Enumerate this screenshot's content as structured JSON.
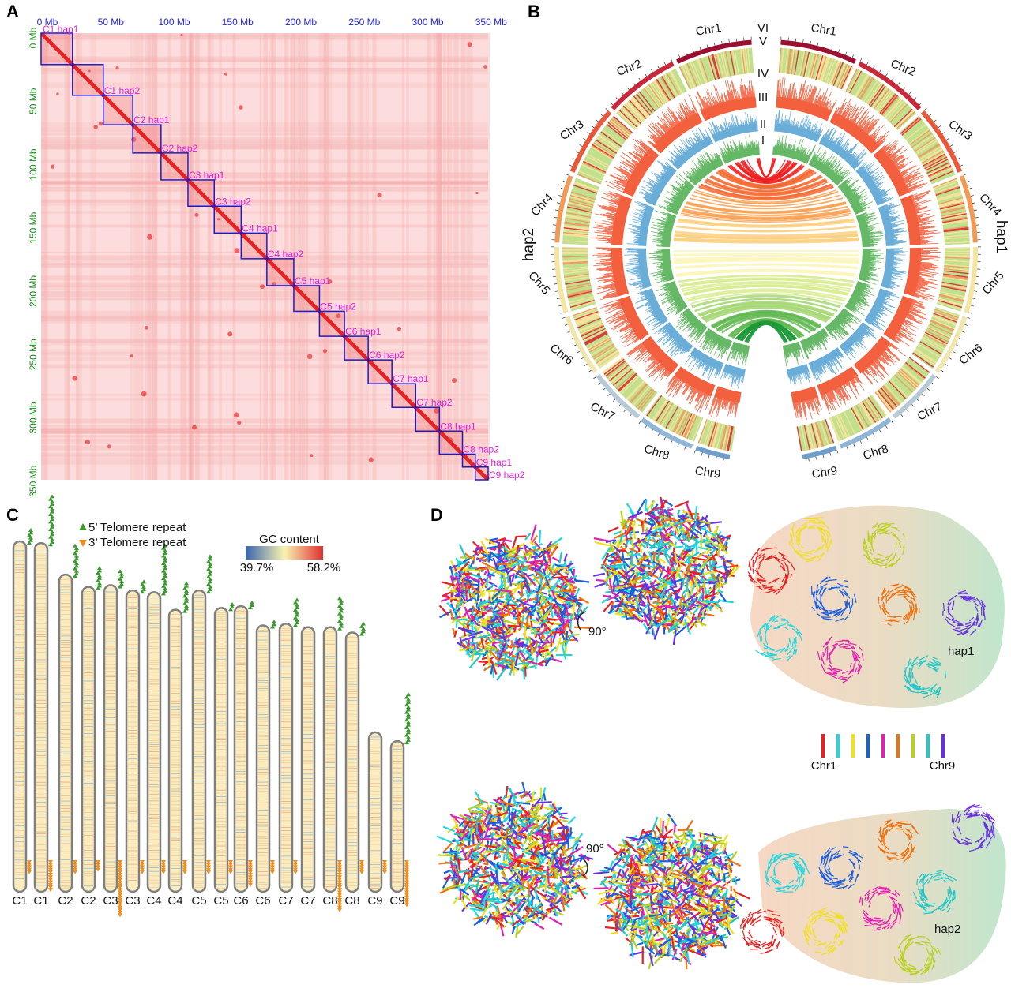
{
  "panels": {
    "a": "A",
    "b": "B",
    "c": "C",
    "d": "D"
  },
  "panel_a": {
    "top_ticks": [
      "0 Mb",
      "50 Mb",
      "100 Mb",
      "150 Mb",
      "200 Mb",
      "250 Mb",
      "300 Mb",
      "350 Mb"
    ],
    "left_ticks": [
      "0 Mb",
      "50 Mb",
      "100 Mb",
      "150 Mb",
      "200 Mb",
      "250 Mb",
      "300 Mb",
      "350 Mb"
    ],
    "tick_values_mb": [
      0,
      50,
      100,
      150,
      200,
      250,
      300,
      350
    ],
    "blocks": [
      {
        "label": "C1 hap1",
        "mb": 24.5
      },
      {
        "label": "C1 hap2",
        "mb": 24
      },
      {
        "label": "C2 hap1",
        "mb": 23
      },
      {
        "label": "C2 hap2",
        "mb": 22
      },
      {
        "label": "C3 hap1",
        "mb": 21
      },
      {
        "label": "C3 hap2",
        "mb": 20.5
      },
      {
        "label": "C4 hap1",
        "mb": 21
      },
      {
        "label": "C4 hap2",
        "mb": 20
      },
      {
        "label": "C5 hap1",
        "mb": 21
      },
      {
        "label": "C5 hap2",
        "mb": 20
      },
      {
        "label": "C6 hap1",
        "mb": 19.5
      },
      {
        "label": "C6 hap2",
        "mb": 18.5
      },
      {
        "label": "C7 hap1",
        "mb": 18.5
      },
      {
        "label": "C7 hap2",
        "mb": 18.5
      },
      {
        "label": "C8 hap1",
        "mb": 18.5
      },
      {
        "label": "C8 hap2",
        "mb": 18
      },
      {
        "label": "C9 hap1",
        "mb": 10
      },
      {
        "label": "C9 hap2",
        "mb": 10
      }
    ],
    "colors": {
      "background": "#fcdcdc",
      "diagonal": "#e01010",
      "box": "#1a1ad0"
    }
  },
  "panel_b": {
    "rings": [
      "VI",
      "V",
      "IV",
      "III",
      "II",
      "I"
    ],
    "hap1_label": "hap1",
    "hap2_label": "hap2",
    "chromosomes": [
      {
        "label": "Chr1",
        "color": "#9b1030",
        "link": "#ee2020"
      },
      {
        "label": "Chr2",
        "color": "#c8283a",
        "link": "#f56a30"
      },
      {
        "label": "Chr3",
        "color": "#e8583a",
        "link": "#f8a050"
      },
      {
        "label": "Chr4",
        "color": "#f09a55",
        "link": "#fbd080"
      },
      {
        "label": "Chr5",
        "color": "#f6e5a0",
        "link": "#fbf6b8"
      },
      {
        "label": "Chr6",
        "color": "#f2e6b0",
        "link": "#d8ec90"
      },
      {
        "label": "Chr7",
        "color": "#b8cad6",
        "link": "#a8d878"
      },
      {
        "label": "Chr8",
        "color": "#8fb6d6",
        "link": "#60b850"
      },
      {
        "label": "Chr9",
        "color": "#6f9ec8",
        "link": "#1e9a3a"
      }
    ],
    "colors": {
      "ring_iv": "#f2603f",
      "ring_iii": "#6aaed8",
      "ring_ii": "#66b866"
    }
  },
  "panel_c": {
    "legend": {
      "five_prime": "5’  Telomere repeat",
      "three_prime": "3’  Telomere repeat"
    },
    "gc": {
      "title": "GC content",
      "min": "39.7%",
      "max": "58.2%"
    },
    "chromosomes": [
      {
        "label": "C1",
        "top": 0.0,
        "t5": 6,
        "t3": 5
      },
      {
        "label": "C1",
        "top": 0.005,
        "t5": 20,
        "t3": 12
      },
      {
        "label": "C2",
        "top": 0.095,
        "t5": 13,
        "t3": 5
      },
      {
        "label": "C2",
        "top": 0.13,
        "t5": 9,
        "t3": 4
      },
      {
        "label": "C3",
        "top": 0.125,
        "t5": 7,
        "t3": 22
      },
      {
        "label": "C3",
        "top": 0.14,
        "t5": 5,
        "t3": 5
      },
      {
        "label": "C4",
        "top": 0.145,
        "t5": 20,
        "t3": 5
      },
      {
        "label": "C4",
        "top": 0.195,
        "t5": 12,
        "t3": 5
      },
      {
        "label": "C5",
        "top": 0.14,
        "t5": 15,
        "t3": 5
      },
      {
        "label": "C5",
        "top": 0.19,
        "t5": 3,
        "t3": 5
      },
      {
        "label": "C6",
        "top": 0.185,
        "t5": 3,
        "t3": 10
      },
      {
        "label": "C6",
        "top": 0.24,
        "t5": 3,
        "t3": 5
      },
      {
        "label": "C7",
        "top": 0.235,
        "t5": 11,
        "t3": 5
      },
      {
        "label": "C7",
        "top": 0.245,
        "t5": 0,
        "t3": 0
      },
      {
        "label": "C8",
        "top": 0.245,
        "t5": 13,
        "t3": 20
      },
      {
        "label": "C8",
        "top": 0.26,
        "t5": 5,
        "t3": 5
      },
      {
        "label": "C9",
        "top": 0.545,
        "t5": 0,
        "t3": 5
      },
      {
        "label": "C9",
        "top": 0.57,
        "t5": 20,
        "t3": 18
      }
    ],
    "colors": {
      "five": "#3a9a30",
      "three": "#f0901a"
    }
  },
  "panel_d": {
    "rotation": "90°",
    "hap1": "hap1",
    "hap2": "hap2",
    "legend_first": "Chr1",
    "legend_last": "Chr9",
    "chr_colors": [
      "#e82020",
      "#20d8e0",
      "#f0e020",
      "#1a5ee0",
      "#e020b0",
      "#f07010",
      "#b8d020",
      "#20c8c8",
      "#6a30e0"
    ]
  }
}
